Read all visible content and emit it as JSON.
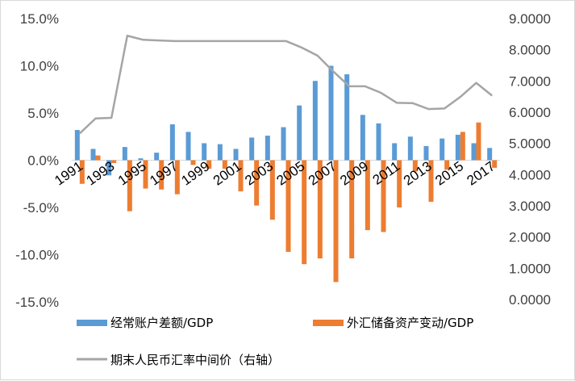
{
  "chart_data": {
    "type": "bar",
    "title": "",
    "x": [
      1991,
      1992,
      1993,
      1994,
      1995,
      1996,
      1997,
      1998,
      1999,
      2000,
      2001,
      2002,
      2003,
      2004,
      2005,
      2006,
      2007,
      2008,
      2009,
      2010,
      2011,
      2012,
      2013,
      2014,
      2015,
      2016,
      2017
    ],
    "x_tick_labels": [
      "1991",
      "1993",
      "1995",
      "1997",
      "1999",
      "2001",
      "2003",
      "2005",
      "2007",
      "2009",
      "2011",
      "2013",
      "2015",
      "2017"
    ],
    "left_axis": {
      "ylim": [
        -15,
        15
      ],
      "ticks": [
        15,
        10,
        5,
        0,
        -5,
        -10,
        -15
      ],
      "tick_labels": [
        "15.0%",
        "10.0%",
        "5.0%",
        "0.0%",
        "-5.0%",
        "-10.0%",
        "-15.0%"
      ]
    },
    "right_axis": {
      "ylim": [
        0,
        9
      ],
      "ticks": [
        9,
        8,
        7,
        6,
        5,
        4,
        3,
        2,
        1,
        0
      ],
      "tick_labels": [
        "9.0000",
        "8.0000",
        "7.0000",
        "6.0000",
        "5.0000",
        "4.0000",
        "3.0000",
        "2.0000",
        "1.0000",
        "0.0000"
      ]
    },
    "series": [
      {
        "name": "经常账户差额/GDP",
        "kind": "bar",
        "axis": "left",
        "color": "#5b9bd5",
        "values": [
          3.2,
          1.2,
          -1.6,
          1.4,
          0.2,
          0.8,
          3.8,
          3.0,
          1.8,
          1.7,
          1.2,
          2.4,
          2.6,
          3.5,
          5.8,
          8.4,
          10.0,
          9.1,
          4.8,
          3.9,
          1.8,
          2.5,
          1.5,
          2.3,
          2.7,
          1.8,
          1.3
        ]
      },
      {
        "name": "外汇储备资产变动/GDP",
        "kind": "bar",
        "axis": "left",
        "color": "#ed7d31",
        "values": [
          -2.5,
          0.5,
          -0.3,
          -5.4,
          -3.0,
          -3.1,
          -3.6,
          -0.5,
          -0.9,
          -0.9,
          -3.3,
          -4.8,
          -6.3,
          -9.7,
          -11.0,
          -10.4,
          -12.9,
          -10.4,
          -7.4,
          -7.6,
          -5.0,
          -1.2,
          -4.4,
          -1.0,
          3.0,
          4.0,
          -0.8
        ]
      },
      {
        "name": "期末人民币汇率中间价（右轴）",
        "kind": "line",
        "axis": "right",
        "color": "#a5a5a5",
        "values": [
          5.32,
          5.8,
          5.82,
          8.45,
          8.32,
          8.3,
          8.28,
          8.28,
          8.28,
          8.28,
          8.28,
          8.28,
          8.28,
          8.28,
          8.07,
          7.81,
          7.3,
          6.83,
          6.83,
          6.62,
          6.3,
          6.29,
          6.1,
          6.12,
          6.49,
          6.94,
          6.53
        ]
      }
    ],
    "legend_position": "bottom",
    "grid": false
  }
}
